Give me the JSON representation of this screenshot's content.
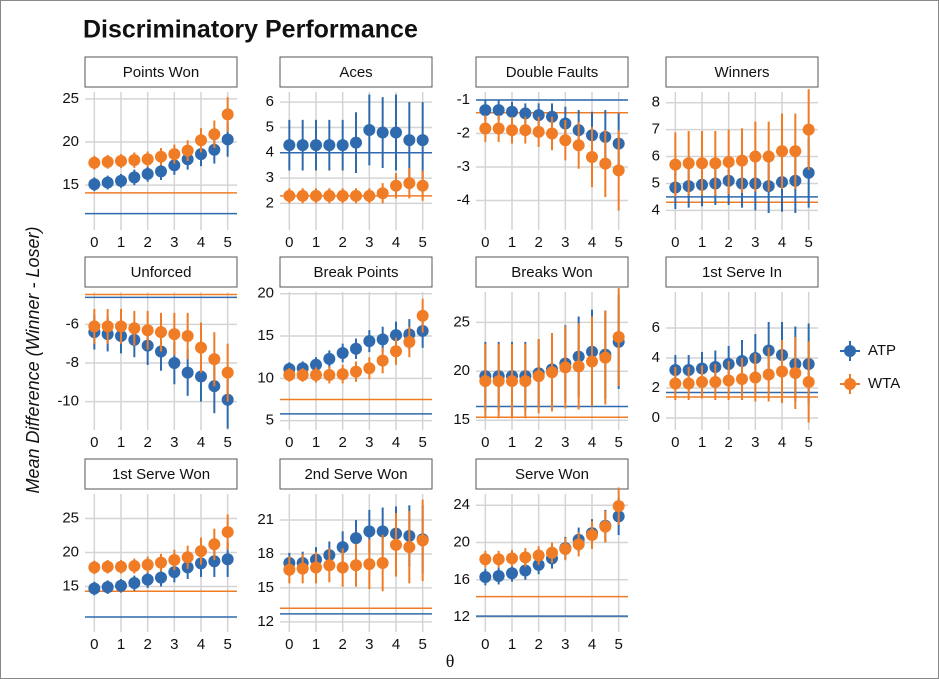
{
  "chart_data": {
    "type": "errorbar",
    "title": "Discriminatory Performance",
    "xlabel": "θ",
    "ylabel": "Mean Difference (Winner - Loser)",
    "x": [
      0,
      0.5,
      1,
      1.5,
      2,
      2.5,
      3,
      3.5,
      4,
      4.5,
      5
    ],
    "xlim": [
      -0.35,
      5.35
    ],
    "xticks": [
      0,
      1,
      2,
      3,
      4,
      5
    ],
    "series": [
      {
        "name": "ATP",
        "color": "#2e6aad"
      },
      {
        "name": "WTA",
        "color": "#f07c26"
      }
    ],
    "panels": [
      {
        "title": "Points Won",
        "ylim": [
          9.8,
          25.8
        ],
        "yticks": [
          15,
          20,
          25
        ],
        "series": [
          {
            "values": [
              15.1,
              15.3,
              15.5,
              15.9,
              16.3,
              16.6,
              17.3,
              18.0,
              18.6,
              19.1,
              20.3
            ],
            "errors": [
              0.8,
              0.8,
              0.8,
              0.9,
              0.9,
              1.0,
              1.1,
              1.2,
              1.4,
              1.6,
              2.0
            ],
            "baseline": 11.7
          },
          {
            "values": [
              17.6,
              17.7,
              17.8,
              17.9,
              18.0,
              18.3,
              18.6,
              19.0,
              20.2,
              20.9,
              23.2
            ],
            "errors": [
              0.8,
              0.8,
              0.8,
              0.9,
              0.9,
              1.0,
              1.1,
              1.2,
              1.4,
              1.6,
              2.0
            ],
            "baseline": 14.1
          }
        ]
      },
      {
        "title": "Aces",
        "ylim": [
          0.95,
          6.4
        ],
        "yticks": [
          2,
          3,
          4,
          5,
          6
        ],
        "series": [
          {
            "values": [
              4.3,
              4.3,
              4.3,
              4.3,
              4.3,
              4.4,
              4.9,
              4.8,
              4.8,
              4.5,
              4.5
            ],
            "errors": [
              1.0,
              1.0,
              1.0,
              1.0,
              1.0,
              1.2,
              1.4,
              1.4,
              1.5,
              1.5,
              1.5
            ],
            "baseline": 4.0
          },
          {
            "values": [
              2.3,
              2.3,
              2.3,
              2.3,
              2.3,
              2.3,
              2.3,
              2.4,
              2.7,
              2.8,
              2.7
            ],
            "errors": [
              0.3,
              0.3,
              0.3,
              0.3,
              0.3,
              0.3,
              0.3,
              0.4,
              0.5,
              0.6,
              0.6
            ],
            "baseline": 2.3
          }
        ]
      },
      {
        "title": "Double Faults",
        "ylim": [
          -4.88,
          -0.76
        ],
        "yticks": [
          -4,
          -3,
          -2,
          -1
        ],
        "series": [
          {
            "values": [
              -1.3,
              -1.3,
              -1.35,
              -1.4,
              -1.45,
              -1.5,
              -1.7,
              -1.9,
              -2.05,
              -2.1,
              -2.3
            ],
            "errors": [
              0.3,
              0.3,
              0.3,
              0.3,
              0.35,
              0.4,
              0.5,
              0.6,
              0.7,
              0.8,
              0.9
            ],
            "baseline": -1.0
          },
          {
            "values": [
              -1.85,
              -1.85,
              -1.9,
              -1.9,
              -1.95,
              -2.0,
              -2.2,
              -2.35,
              -2.7,
              -2.9,
              -3.1
            ],
            "errors": [
              0.4,
              0.4,
              0.4,
              0.4,
              0.45,
              0.5,
              0.6,
              0.7,
              0.9,
              1.0,
              1.2
            ],
            "baseline": -1.38
          }
        ]
      },
      {
        "title": "Winners",
        "ylim": [
          3.27,
          8.4
        ],
        "yticks": [
          4,
          5,
          6,
          7,
          8
        ],
        "series": [
          {
            "values": [
              4.85,
              4.9,
              4.95,
              5.0,
              5.1,
              5.0,
              5.0,
              4.9,
              5.05,
              5.1,
              5.4
            ],
            "errors": [
              0.8,
              0.8,
              0.8,
              0.8,
              0.9,
              0.9,
              1.0,
              1.0,
              1.1,
              1.2,
              1.3
            ],
            "baseline": 4.5
          },
          {
            "values": [
              5.7,
              5.75,
              5.75,
              5.75,
              5.8,
              5.85,
              6.0,
              6.0,
              6.2,
              6.2,
              7.0
            ],
            "errors": [
              1.2,
              1.2,
              1.2,
              1.2,
              1.2,
              1.2,
              1.3,
              1.3,
              1.4,
              1.4,
              1.5
            ],
            "baseline": 4.3
          }
        ]
      },
      {
        "title": "Unforced",
        "ylim": [
          -11.47,
          -4.32
        ],
        "yticks": [
          -10,
          -8,
          -6
        ],
        "series": [
          {
            "values": [
              -6.4,
              -6.5,
              -6.6,
              -6.8,
              -7.1,
              -7.4,
              -8.0,
              -8.5,
              -8.7,
              -9.2,
              -9.9
            ],
            "errors": [
              0.9,
              0.9,
              0.9,
              0.9,
              1.0,
              1.0,
              1.1,
              1.2,
              1.3,
              1.4,
              1.5
            ],
            "baseline": -4.6
          },
          {
            "values": [
              -6.1,
              -6.1,
              -6.1,
              -6.2,
              -6.3,
              -6.4,
              -6.5,
              -6.6,
              -7.2,
              -7.8,
              -8.5
            ],
            "errors": [
              0.9,
              0.9,
              0.9,
              0.9,
              1.0,
              1.0,
              1.1,
              1.2,
              1.3,
              1.4,
              1.5
            ],
            "baseline": -4.45
          }
        ]
      },
      {
        "title": "Break Points",
        "ylim": [
          3.9,
          20.2
        ],
        "yticks": [
          5,
          10,
          15,
          20
        ],
        "series": [
          {
            "values": [
              11.1,
              11.2,
              11.6,
              12.3,
              13.0,
              13.5,
              14.4,
              14.6,
              15.1,
              15.2,
              15.6
            ],
            "errors": [
              0.8,
              0.8,
              0.9,
              1.0,
              1.1,
              1.2,
              1.3,
              1.5,
              1.6,
              1.8,
              2.0
            ],
            "baseline": 5.8
          },
          {
            "values": [
              10.4,
              10.4,
              10.4,
              10.4,
              10.5,
              10.8,
              11.2,
              12.1,
              13.2,
              14.3,
              17.4
            ],
            "errors": [
              0.8,
              0.8,
              0.9,
              1.0,
              1.1,
              1.2,
              1.3,
              1.5,
              1.6,
              1.8,
              2.0
            ],
            "baseline": 7.5
          }
        ]
      },
      {
        "title": "Breaks Won",
        "ylim": [
          14.0,
          28.1
        ],
        "yticks": [
          15,
          20,
          25
        ],
        "series": [
          {
            "values": [
              19.5,
              19.5,
              19.5,
              19.5,
              19.8,
              20.2,
              20.8,
              21.5,
              22.0,
              21.7,
              23.0
            ],
            "errors": [
              3.5,
              3.5,
              3.5,
              3.5,
              3.5,
              3.7,
              3.9,
              4.1,
              4.3,
              4.5,
              4.8
            ],
            "baseline": 16.4
          },
          {
            "values": [
              19.0,
              19.0,
              19.0,
              19.0,
              19.5,
              19.9,
              20.4,
              20.5,
              21.0,
              21.4,
              23.5
            ],
            "errors": [
              3.8,
              3.8,
              3.8,
              3.8,
              3.8,
              4.0,
              4.2,
              4.4,
              4.6,
              4.8,
              5.0
            ],
            "baseline": 15.3
          }
        ]
      },
      {
        "title": "1st Serve In",
        "ylim": [
          -0.8,
          8.4
        ],
        "yticks": [
          0,
          2,
          4,
          6
        ],
        "series": [
          {
            "values": [
              3.2,
              3.2,
              3.3,
              3.4,
              3.6,
              3.8,
              4.0,
              4.5,
              4.2,
              3.6,
              3.6
            ],
            "errors": [
              1.0,
              1.0,
              1.1,
              1.1,
              1.2,
              1.4,
              1.6,
              1.9,
              2.2,
              2.5,
              2.7
            ],
            "baseline": 1.7
          },
          {
            "values": [
              2.3,
              2.3,
              2.4,
              2.4,
              2.5,
              2.6,
              2.7,
              2.9,
              3.1,
              3.0,
              2.4
            ],
            "errors": [
              1.1,
              1.1,
              1.1,
              1.2,
              1.3,
              1.4,
              1.6,
              1.8,
              2.1,
              2.4,
              2.7
            ],
            "baseline": 1.4
          }
        ]
      },
      {
        "title": "1st Serve Won",
        "ylim": [
          8.3,
          28.6
        ],
        "yticks": [
          15,
          20,
          25
        ],
        "series": [
          {
            "values": [
              14.7,
              14.9,
              15.1,
              15.5,
              16.0,
              16.3,
              17.1,
              17.8,
              18.4,
              18.7,
              19.0
            ],
            "errors": [
              1.0,
              1.0,
              1.0,
              1.1,
              1.2,
              1.3,
              1.5,
              1.7,
              2.0,
              2.3,
              2.6
            ],
            "baseline": 10.5
          },
          {
            "values": [
              17.8,
              17.9,
              17.9,
              18.0,
              18.2,
              18.5,
              18.9,
              19.3,
              20.2,
              21.2,
              23.0
            ],
            "errors": [
              1.0,
              1.0,
              1.0,
              1.1,
              1.2,
              1.3,
              1.5,
              1.7,
              2.0,
              2.3,
              2.6
            ],
            "baseline": 14.3
          }
        ]
      },
      {
        "title": "2nd Serve Won",
        "ylim": [
          11.1,
          23.3
        ],
        "yticks": [
          12,
          15,
          18,
          21
        ],
        "series": [
          {
            "values": [
              17.2,
              17.2,
              17.5,
              17.9,
              18.6,
              19.4,
              20.0,
              20.0,
              19.8,
              19.6,
              19.3
            ],
            "errors": [
              0.9,
              1.0,
              1.1,
              1.2,
              1.4,
              1.6,
              1.9,
              2.1,
              2.4,
              2.7,
              3.0
            ],
            "baseline": 12.7
          },
          {
            "values": [
              16.6,
              16.7,
              16.8,
              17.0,
              16.8,
              17.0,
              17.1,
              17.2,
              18.8,
              18.6,
              19.2
            ],
            "errors": [
              1.2,
              1.3,
              1.4,
              1.5,
              1.7,
              1.9,
              2.2,
              2.5,
              2.8,
              3.2,
              3.6
            ],
            "baseline": 13.2
          }
        ]
      },
      {
        "title": "Serve Won",
        "ylim": [
          10.4,
          25.2
        ],
        "yticks": [
          12,
          16,
          20,
          24
        ],
        "series": [
          {
            "values": [
              16.3,
              16.4,
              16.7,
              17.0,
              17.6,
              18.3,
              19.4,
              20.3,
              21.0,
              21.8,
              22.8
            ],
            "errors": [
              0.9,
              0.9,
              0.9,
              1.0,
              1.0,
              1.1,
              1.2,
              1.3,
              1.5,
              1.7,
              2.0
            ],
            "baseline": 12.1
          },
          {
            "values": [
              18.2,
              18.2,
              18.3,
              18.4,
              18.6,
              18.9,
              19.3,
              19.8,
              20.8,
              21.7,
              23.9
            ],
            "errors": [
              0.9,
              0.9,
              0.9,
              1.0,
              1.0,
              1.1,
              1.2,
              1.3,
              1.5,
              1.7,
              2.0
            ],
            "baseline": 14.2
          }
        ]
      }
    ]
  }
}
